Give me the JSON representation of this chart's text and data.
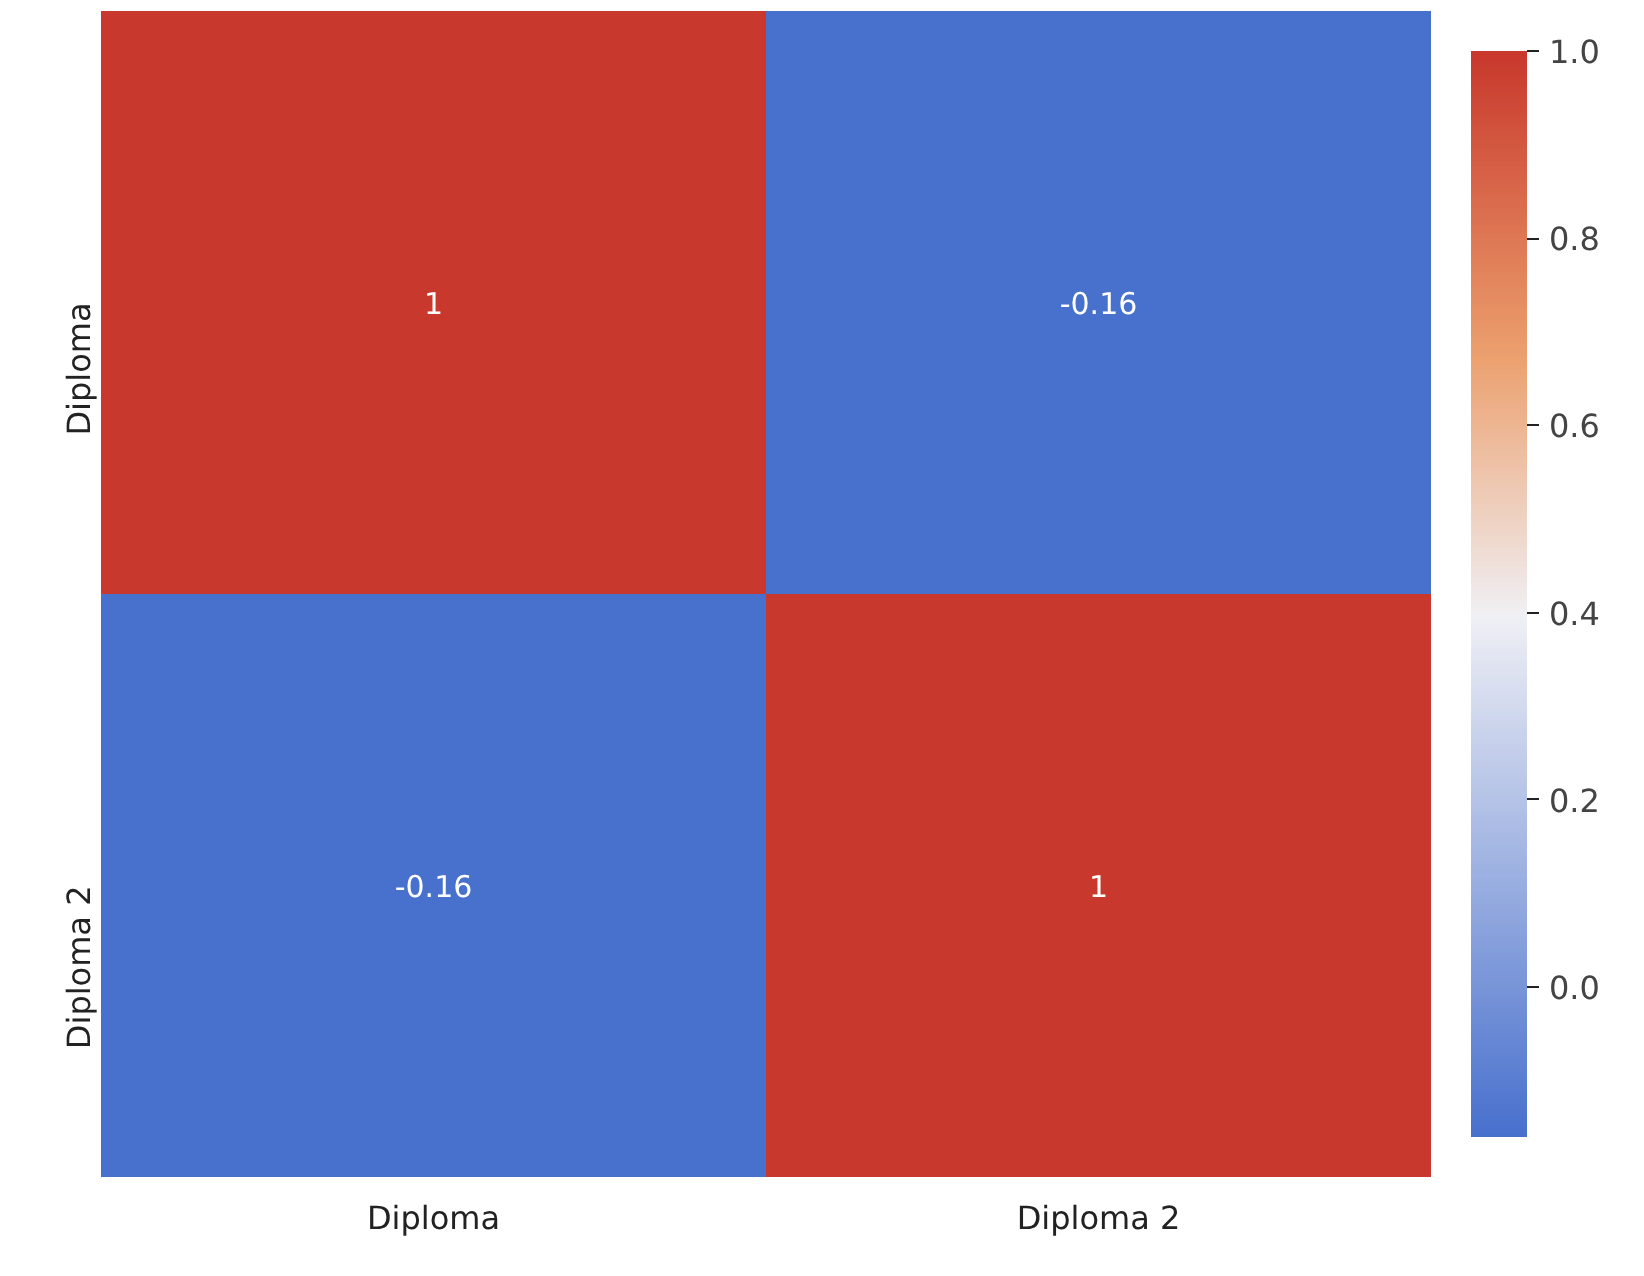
{
  "chart_data": {
    "type": "heatmap",
    "categories": [
      "Diploma",
      "Diploma 2"
    ],
    "y_categories": [
      "Diploma",
      "Diploma 2"
    ],
    "cells": [
      [
        1,
        -0.16
      ],
      [
        -0.16,
        1
      ]
    ],
    "cell_labels": [
      [
        "1",
        "-0.16"
      ],
      [
        "-0.16",
        "1"
      ]
    ],
    "clim": [
      -0.16,
      1.0
    ],
    "cticks": [
      {
        "value": 0,
        "label": "0.0"
      },
      {
        "value": 0.2,
        "label": "0.2"
      },
      {
        "value": 0.4,
        "label": "0.4"
      },
      {
        "value": 0.6,
        "label": "0.6"
      },
      {
        "value": 0.8,
        "label": "0.8"
      },
      {
        "value": 1.0,
        "label": "1.0"
      }
    ]
  }
}
